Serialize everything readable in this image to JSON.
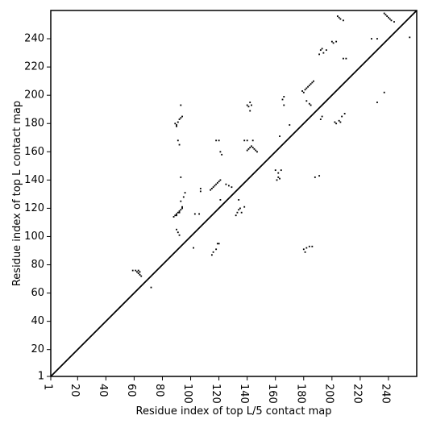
{
  "chart_data": {
    "type": "scatter",
    "title": "",
    "xlabel": "Residue index of top L/5 contact map",
    "ylabel": "Residue index of top L contact map",
    "xlim": [
      1,
      260
    ],
    "ylim": [
      1,
      260
    ],
    "xticks": [
      1,
      20,
      40,
      60,
      80,
      100,
      120,
      140,
      160,
      180,
      200,
      220,
      240
    ],
    "yticks": [
      1,
      20,
      40,
      60,
      80,
      100,
      120,
      140,
      160,
      180,
      200,
      220,
      240
    ],
    "grid": false,
    "diagonal_line": true,
    "colors": {
      "marker": "#000000",
      "background": "#ffffff",
      "axes": "#000000"
    },
    "series": [
      {
        "points": [
          [
            59,
            76
          ],
          [
            61,
            76
          ],
          [
            62,
            75
          ],
          [
            63,
            74
          ],
          [
            64,
            73
          ],
          [
            65,
            72
          ],
          [
            63,
            76
          ],
          [
            64,
            75
          ],
          [
            72,
            64
          ],
          [
            88,
            114
          ],
          [
            89,
            115
          ],
          [
            90,
            116
          ],
          [
            91,
            117
          ],
          [
            92,
            118
          ],
          [
            93,
            119
          ],
          [
            94,
            120
          ],
          [
            90,
            115
          ],
          [
            92,
            117
          ],
          [
            94,
            121
          ],
          [
            93,
            125
          ],
          [
            95,
            128
          ],
          [
            96,
            131
          ],
          [
            89,
            180
          ],
          [
            90,
            179
          ],
          [
            91,
            181
          ],
          [
            92,
            183
          ],
          [
            93,
            184
          ],
          [
            94,
            185
          ],
          [
            90,
            178
          ],
          [
            93,
            193
          ],
          [
            91,
            168
          ],
          [
            92,
            165
          ],
          [
            93,
            142
          ],
          [
            90,
            105
          ],
          [
            91,
            103
          ],
          [
            92,
            101
          ],
          [
            102,
            92
          ],
          [
            103,
            116
          ],
          [
            106,
            116
          ],
          [
            107,
            132
          ],
          [
            107,
            134
          ],
          [
            115,
            87
          ],
          [
            116,
            89
          ],
          [
            118,
            91
          ],
          [
            119,
            95
          ],
          [
            120,
            95
          ],
          [
            114,
            133
          ],
          [
            115,
            134
          ],
          [
            116,
            135
          ],
          [
            117,
            136
          ],
          [
            118,
            137
          ],
          [
            119,
            138
          ],
          [
            120,
            139
          ],
          [
            121,
            140
          ],
          [
            118,
            168
          ],
          [
            120,
            168
          ],
          [
            121,
            160
          ],
          [
            122,
            158
          ],
          [
            121,
            126
          ],
          [
            125,
            137
          ],
          [
            127,
            136
          ],
          [
            129,
            135
          ],
          [
            132,
            115
          ],
          [
            133,
            117
          ],
          [
            134,
            119
          ],
          [
            135,
            120
          ],
          [
            134,
            126
          ],
          [
            136,
            117
          ],
          [
            138,
            121
          ],
          [
            138,
            168
          ],
          [
            140,
            161
          ],
          [
            141,
            162
          ],
          [
            142,
            163
          ],
          [
            143,
            164
          ],
          [
            144,
            163
          ],
          [
            145,
            162
          ],
          [
            146,
            161
          ],
          [
            147,
            160
          ],
          [
            140,
            193
          ],
          [
            141,
            192
          ],
          [
            142,
            195
          ],
          [
            143,
            193
          ],
          [
            142,
            189
          ],
          [
            144,
            168
          ],
          [
            140,
            168
          ],
          [
            160,
            147
          ],
          [
            161,
            140
          ],
          [
            162,
            142
          ],
          [
            163,
            141
          ],
          [
            162,
            145
          ],
          [
            164,
            147
          ],
          [
            163,
            171
          ],
          [
            165,
            197
          ],
          [
            166,
            199
          ],
          [
            166,
            193
          ],
          [
            170,
            179
          ],
          [
            179,
            203
          ],
          [
            180,
            202
          ],
          [
            181,
            204
          ],
          [
            182,
            205
          ],
          [
            183,
            206
          ],
          [
            184,
            207
          ],
          [
            185,
            208
          ],
          [
            186,
            209
          ],
          [
            187,
            210
          ],
          [
            182,
            196
          ],
          [
            184,
            194
          ],
          [
            185,
            193
          ],
          [
            180,
            91
          ],
          [
            181,
            89
          ],
          [
            182,
            92
          ],
          [
            184,
            93
          ],
          [
            186,
            93
          ],
          [
            188,
            142
          ],
          [
            191,
            143
          ],
          [
            191,
            229
          ],
          [
            192,
            232
          ],
          [
            193,
            233
          ],
          [
            194,
            230
          ],
          [
            196,
            232
          ],
          [
            192,
            183
          ],
          [
            193,
            185
          ],
          [
            200,
            238
          ],
          [
            201,
            237
          ],
          [
            203,
            238
          ],
          [
            202,
            181
          ],
          [
            203,
            180
          ],
          [
            205,
            182
          ],
          [
            206,
            181
          ],
          [
            207,
            185
          ],
          [
            209,
            187
          ],
          [
            208,
            226
          ],
          [
            210,
            226
          ],
          [
            204,
            256
          ],
          [
            205,
            255
          ],
          [
            206,
            254
          ],
          [
            208,
            253
          ],
          [
            228,
            240
          ],
          [
            232,
            240
          ],
          [
            232,
            195
          ],
          [
            237,
            202
          ],
          [
            237,
            258
          ],
          [
            238,
            257
          ],
          [
            239,
            256
          ],
          [
            240,
            255
          ],
          [
            241,
            254
          ],
          [
            242,
            253
          ],
          [
            244,
            252
          ],
          [
            255,
            241
          ]
        ]
      }
    ]
  }
}
